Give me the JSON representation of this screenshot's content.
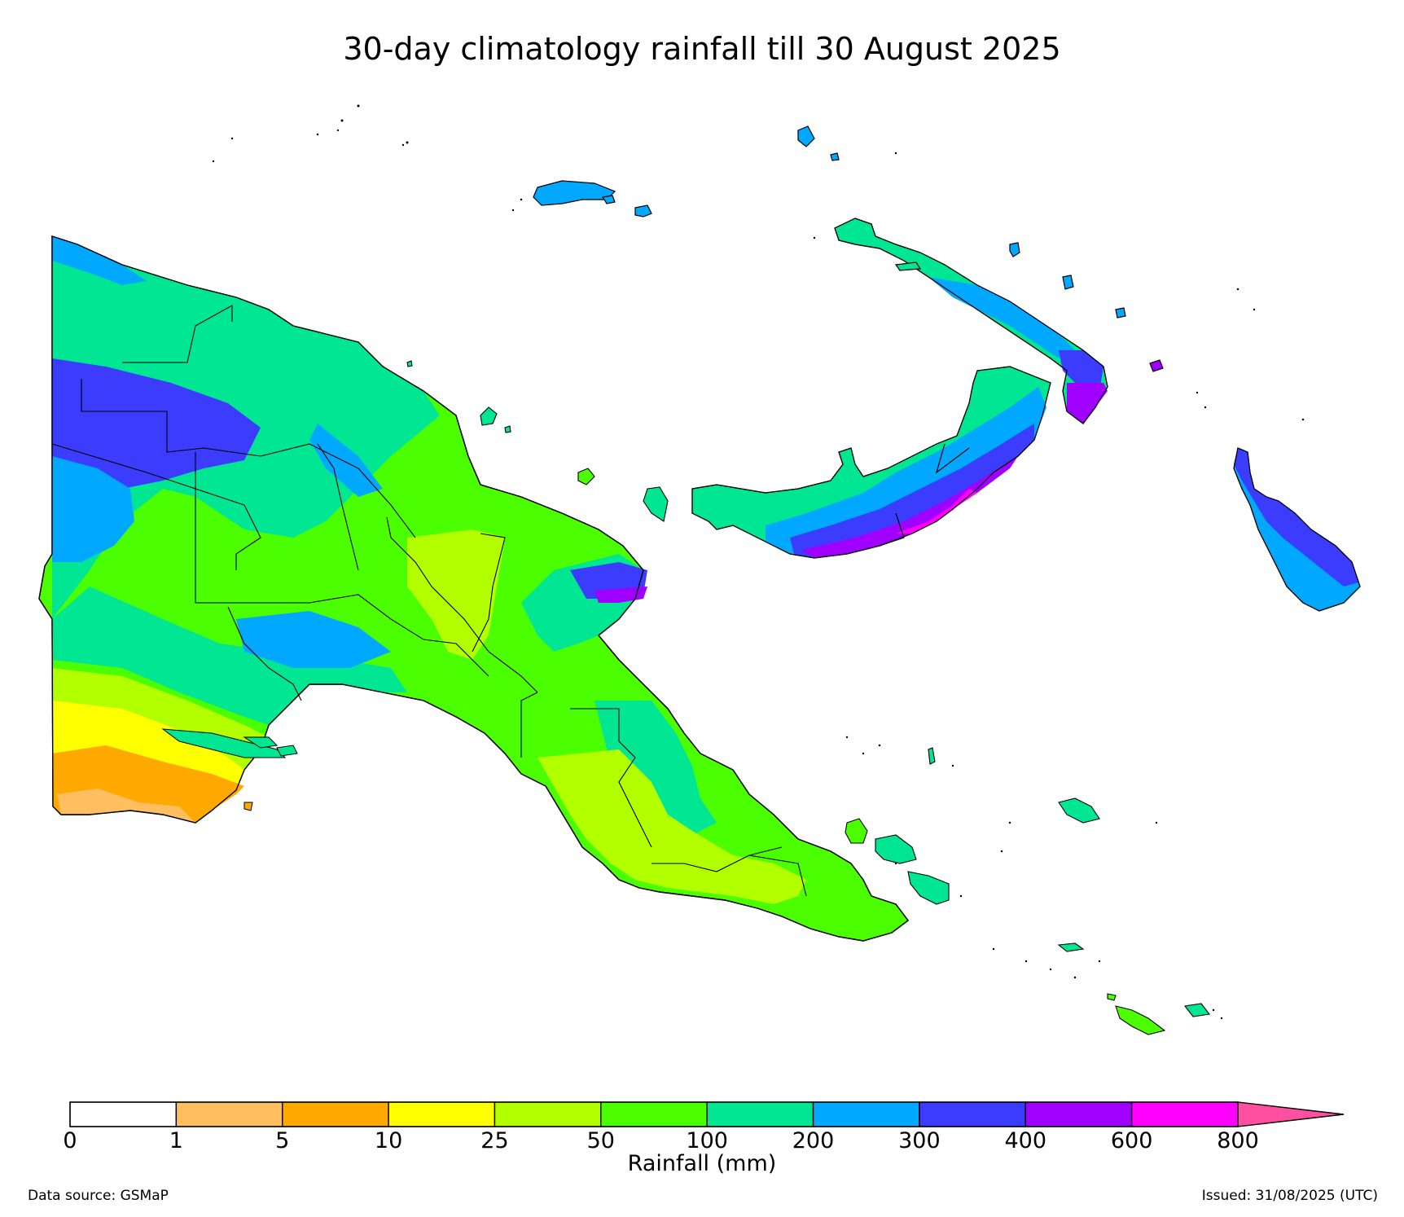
{
  "title": "30-day climatology rainfall till 30 August 2025",
  "colorbar": {
    "label": "Rainfall (mm)",
    "ticks": [
      "0",
      "1",
      "5",
      "10",
      "25",
      "50",
      "100",
      "200",
      "300",
      "400",
      "600",
      "800"
    ],
    "colors": [
      "#ffffff",
      "#ffbe5f",
      "#ffa800",
      "#ffff00",
      "#b2ff00",
      "#4cff00",
      "#00e693",
      "#00a8ff",
      "#3c3cff",
      "#a000ff",
      "#ff00ff"
    ],
    "extend_color": "#ff4fa0"
  },
  "footer": {
    "source": "Data source: GSMaP",
    "issued": "Issued: 31/08/2025 (UTC)"
  }
}
